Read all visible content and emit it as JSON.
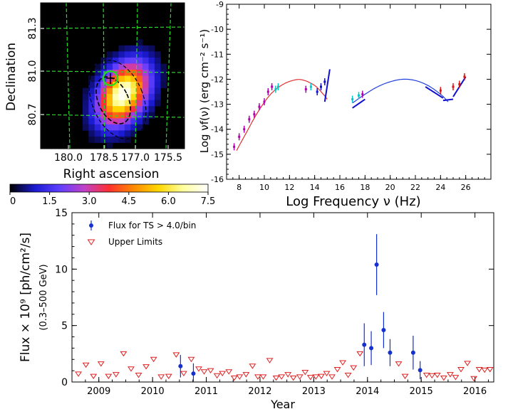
{
  "chart_data": [
    {
      "type": "heatmap",
      "xlabel": "Right ascension",
      "ylabel": "Declination",
      "x_ticks": [
        "180.0",
        "178.5",
        "177.0",
        "175.5"
      ],
      "y_ticks": [
        "81.3",
        "81.0",
        "80.7"
      ],
      "colorbar_ticks": [
        "0",
        "1.5",
        "3.0",
        "4.5",
        "6.0",
        "7.5"
      ],
      "colorbar_range": [
        0,
        7.5
      ],
      "colormap": [
        "#000000",
        "#1a1ad0",
        "#5f3fff",
        "#c040c8",
        "#ff3030",
        "#ff8a00",
        "#ffd800",
        "#ffffa0",
        "#ffffff"
      ],
      "grid_color": "#22dd22",
      "marker_color": "#22dd22",
      "contour_color": "#000000"
    },
    {
      "type": "scatter",
      "xlabel": "Log Frequency ν (Hz)",
      "ylabel": "Log νf(ν) (erg cm⁻² s⁻¹)",
      "xlim": [
        7,
        28
      ],
      "ylim": [
        -16,
        -9
      ],
      "x_ticks": [
        "8",
        "10",
        "12",
        "14",
        "16",
        "18",
        "20",
        "22",
        "24",
        "26"
      ],
      "y_ticks": [
        "-9",
        "-10",
        "-11",
        "-12",
        "-13",
        "-14",
        "-15",
        "-16"
      ],
      "colors": {
        "model": "#e03030",
        "ic_model": "#2040e0",
        "data_magenta": "#b000b0",
        "data_cyan": "#00c8c8",
        "data_blue": "#1010d0",
        "data_red": "#e01010"
      },
      "sync_model": [
        [
          7.8,
          -14.85
        ],
        [
          8.5,
          -14.2
        ],
        [
          9.5,
          -13.3
        ],
        [
          10.5,
          -12.6
        ],
        [
          11.5,
          -12.2
        ],
        [
          12.5,
          -12.02
        ],
        [
          13.2,
          -12.05
        ],
        [
          14.0,
          -12.25
        ],
        [
          14.6,
          -12.55
        ],
        [
          15.0,
          -12.8
        ]
      ],
      "ic_model": [
        [
          17.0,
          -12.95
        ],
        [
          18.0,
          -12.6
        ],
        [
          19.0,
          -12.3
        ],
        [
          20.0,
          -12.1
        ],
        [
          21.0,
          -12.0
        ],
        [
          22.0,
          -12.05
        ],
        [
          23.0,
          -12.25
        ],
        [
          24.0,
          -12.6
        ],
        [
          24.6,
          -12.9
        ]
      ],
      "data_points": [
        {
          "x": 7.6,
          "y": -14.7,
          "c": "data_magenta"
        },
        {
          "x": 8.0,
          "y": -14.3,
          "c": "data_magenta"
        },
        {
          "x": 8.4,
          "y": -14.0,
          "c": "data_magenta"
        },
        {
          "x": 8.8,
          "y": -13.6,
          "c": "data_magenta"
        },
        {
          "x": 9.2,
          "y": -13.4,
          "c": "data_magenta"
        },
        {
          "x": 9.6,
          "y": -13.1,
          "c": "data_magenta"
        },
        {
          "x": 10.0,
          "y": -12.9,
          "c": "data_magenta"
        },
        {
          "x": 10.3,
          "y": -12.5,
          "c": "data_magenta"
        },
        {
          "x": 10.6,
          "y": -12.3,
          "c": "data_magenta"
        },
        {
          "x": 10.9,
          "y": -12.4,
          "c": "data_cyan"
        },
        {
          "x": 11.1,
          "y": -12.3,
          "c": "data_cyan"
        },
        {
          "x": 13.3,
          "y": -12.4,
          "c": "data_magenta"
        },
        {
          "x": 13.7,
          "y": -12.3,
          "c": "data_cyan"
        },
        {
          "x": 14.2,
          "y": -12.5,
          "c": "data_blue"
        },
        {
          "x": 14.5,
          "y": -12.3,
          "c": "data_blue"
        },
        {
          "x": 14.8,
          "y": -12.1,
          "c": "data_blue"
        },
        {
          "x": 17.0,
          "y": -12.8,
          "c": "data_cyan"
        },
        {
          "x": 17.5,
          "y": -12.65,
          "c": "data_cyan"
        },
        {
          "x": 17.8,
          "y": -12.6,
          "c": "data_magenta"
        },
        {
          "x": 24.0,
          "y": -12.45,
          "c": "data_red"
        },
        {
          "x": 25.0,
          "y": -12.3,
          "c": "data_red"
        },
        {
          "x": 25.5,
          "y": -12.2,
          "c": "data_red"
        },
        {
          "x": 25.9,
          "y": -11.9,
          "c": "data_red"
        }
      ],
      "bowties": [
        {
          "x1": 14.8,
          "y1": -12.9,
          "x2": 15.2,
          "y2": -11.6,
          "c": "data_blue"
        },
        {
          "x1": 17.0,
          "y1": -13.15,
          "x2": 18.0,
          "y2": -12.8,
          "c": "data_blue"
        },
        {
          "x1": 22.8,
          "y1": -12.3,
          "x2": 24.2,
          "y2": -12.75,
          "c": "data_blue"
        },
        {
          "x1": 24.2,
          "y1": -12.85,
          "x2": 25.0,
          "y2": -12.8,
          "c": "data_blue"
        },
        {
          "x1": 25.0,
          "y1": -12.7,
          "x2": 26.0,
          "y2": -11.9,
          "c": "data_blue"
        }
      ]
    },
    {
      "type": "scatter",
      "xlabel": "Year",
      "ylabel": "Flux × 10⁹ [ph/cm²/s]",
      "ylabel_sub": "(0.3–500 GeV)",
      "xlim": [
        2008.5,
        2016.35
      ],
      "ylim": [
        0,
        15
      ],
      "x_ticks": [
        "2009",
        "2010",
        "2011",
        "2012",
        "2013",
        "2014",
        "2015",
        "2016"
      ],
      "y_ticks": [
        "0",
        "5",
        "10",
        "15"
      ],
      "legend": {
        "position": "top-left",
        "detections": "Flux for TS > 4.0/bin",
        "upper_limits": "Upper Limits"
      },
      "colors": {
        "detection": "#1530d0",
        "upper_limit": "#e02020"
      },
      "detections": [
        {
          "x": 2010.52,
          "y": 1.4,
          "err": 1.0
        },
        {
          "x": 2010.76,
          "y": 0.75,
          "err": 0.9
        },
        {
          "x": 2013.94,
          "y": 3.3,
          "err": 1.9
        },
        {
          "x": 2014.07,
          "y": 3.0,
          "err": 1.5
        },
        {
          "x": 2014.17,
          "y": 10.4,
          "err": 2.7
        },
        {
          "x": 2014.3,
          "y": 4.6,
          "err": 1.6
        },
        {
          "x": 2014.42,
          "y": 2.6,
          "err": 1.2
        },
        {
          "x": 2014.85,
          "y": 2.6,
          "err": 1.5
        },
        {
          "x": 2014.98,
          "y": 1.05,
          "err": 0.8
        }
      ],
      "upper_limits": [
        {
          "x": 2008.62,
          "y": 0.7
        },
        {
          "x": 2008.76,
          "y": 1.5
        },
        {
          "x": 2008.9,
          "y": 0.5
        },
        {
          "x": 2009.04,
          "y": 1.6
        },
        {
          "x": 2009.18,
          "y": 0.5
        },
        {
          "x": 2009.32,
          "y": 0.65
        },
        {
          "x": 2009.46,
          "y": 2.5
        },
        {
          "x": 2009.6,
          "y": 1.15
        },
        {
          "x": 2009.74,
          "y": 0.6
        },
        {
          "x": 2009.88,
          "y": 1.35
        },
        {
          "x": 2010.02,
          "y": 2.0
        },
        {
          "x": 2010.16,
          "y": 0.45
        },
        {
          "x": 2010.3,
          "y": 0.5
        },
        {
          "x": 2010.44,
          "y": 2.4
        },
        {
          "x": 2010.58,
          "y": 0.75
        },
        {
          "x": 2010.72,
          "y": 2.0
        },
        {
          "x": 2010.86,
          "y": 1.15
        },
        {
          "x": 2010.96,
          "y": 0.9
        },
        {
          "x": 2011.08,
          "y": 1.0
        },
        {
          "x": 2011.2,
          "y": 0.55
        },
        {
          "x": 2011.3,
          "y": 0.75
        },
        {
          "x": 2011.42,
          "y": 0.9
        },
        {
          "x": 2011.52,
          "y": 0.35
        },
        {
          "x": 2011.62,
          "y": 0.45
        },
        {
          "x": 2011.74,
          "y": 0.65
        },
        {
          "x": 2011.86,
          "y": 1.4
        },
        {
          "x": 2011.96,
          "y": 0.45
        },
        {
          "x": 2012.06,
          "y": 0.45
        },
        {
          "x": 2012.18,
          "y": 1.9
        },
        {
          "x": 2012.3,
          "y": 0.35
        },
        {
          "x": 2012.4,
          "y": 0.45
        },
        {
          "x": 2012.52,
          "y": 0.65
        },
        {
          "x": 2012.62,
          "y": 0.35
        },
        {
          "x": 2012.74,
          "y": 0.45
        },
        {
          "x": 2012.84,
          "y": 0.85
        },
        {
          "x": 2012.94,
          "y": 0.4
        },
        {
          "x": 2013.04,
          "y": 0.45
        },
        {
          "x": 2013.14,
          "y": 0.5
        },
        {
          "x": 2013.24,
          "y": 0.75
        },
        {
          "x": 2013.34,
          "y": 0.45
        },
        {
          "x": 2013.44,
          "y": 1.1
        },
        {
          "x": 2013.54,
          "y": 1.7
        },
        {
          "x": 2013.64,
          "y": 0.6
        },
        {
          "x": 2013.74,
          "y": 1.25
        },
        {
          "x": 2013.86,
          "y": 2.5
        },
        {
          "x": 2014.58,
          "y": 1.6
        },
        {
          "x": 2014.7,
          "y": 0.5
        },
        {
          "x": 2015.1,
          "y": 0.6
        },
        {
          "x": 2015.2,
          "y": 0.55
        },
        {
          "x": 2015.3,
          "y": 0.6
        },
        {
          "x": 2015.42,
          "y": 0.35
        },
        {
          "x": 2015.54,
          "y": 0.65
        },
        {
          "x": 2015.64,
          "y": 0.4
        },
        {
          "x": 2015.74,
          "y": 1.1
        },
        {
          "x": 2015.86,
          "y": 1.65
        },
        {
          "x": 2015.98,
          "y": 0.3
        },
        {
          "x": 2016.08,
          "y": 1.1
        },
        {
          "x": 2016.18,
          "y": 1.05
        },
        {
          "x": 2016.28,
          "y": 1.1
        }
      ]
    }
  ]
}
